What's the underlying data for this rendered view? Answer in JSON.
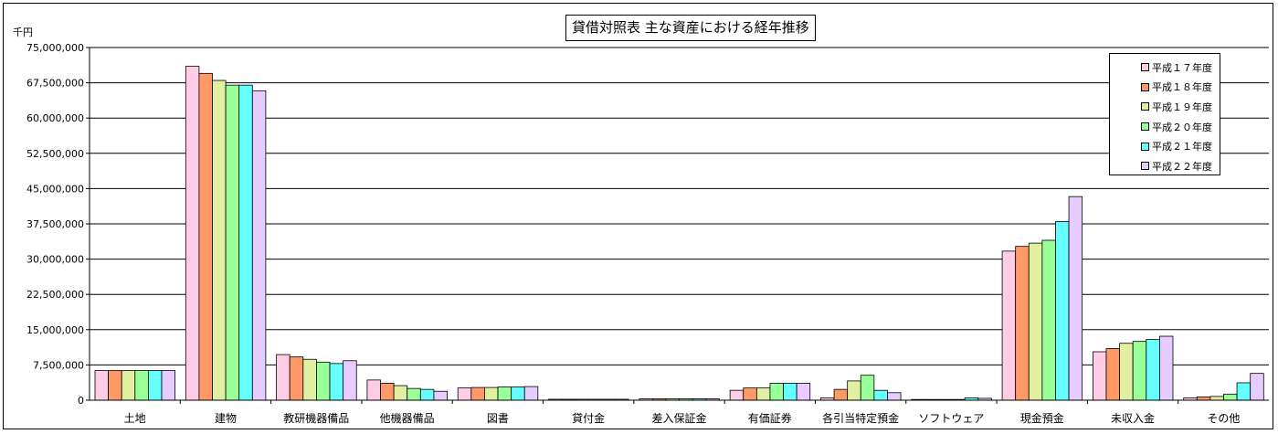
{
  "chart_data": {
    "type": "bar",
    "title": "貸借対照表 主な資産における経年推移",
    "ylabel": "千円",
    "ylim": [
      0,
      75000000
    ],
    "ytick_step": 7500000,
    "grid": true,
    "legend_position": "top-right",
    "categories": [
      "土地",
      "建物",
      "教研機器備品",
      "他機器備品",
      "図書",
      "貸付金",
      "差入保証金",
      "有価証券",
      "各引当特定預金",
      "ソフトウェア",
      "現金預金",
      "未収入金",
      "その他"
    ],
    "series": [
      {
        "name": "平成１７年度",
        "color": "#FFCCE6",
        "values": [
          6300000,
          71000000,
          9700000,
          4300000,
          2600000,
          200000,
          300000,
          2100000,
          500000,
          0,
          31700000,
          10300000,
          500000
        ]
      },
      {
        "name": "平成１８年度",
        "color": "#FF9966",
        "values": [
          6300000,
          69500000,
          9200000,
          3600000,
          2700000,
          200000,
          300000,
          2600000,
          2300000,
          0,
          32700000,
          11000000,
          700000
        ]
      },
      {
        "name": "平成１９年度",
        "color": "#E0F0A0",
        "values": [
          6300000,
          68000000,
          8700000,
          3100000,
          2700000,
          200000,
          300000,
          2600000,
          4100000,
          0,
          33400000,
          12100000,
          800000
        ]
      },
      {
        "name": "平成２０年度",
        "color": "#99FF99",
        "values": [
          6300000,
          67000000,
          8100000,
          2500000,
          2800000,
          200000,
          300000,
          3600000,
          5300000,
          0,
          34000000,
          12500000,
          1300000
        ]
      },
      {
        "name": "平成２１年度",
        "color": "#66FFFF",
        "values": [
          6300000,
          67000000,
          7800000,
          2300000,
          2800000,
          200000,
          300000,
          3600000,
          2100000,
          500000,
          38000000,
          12900000,
          3700000
        ]
      },
      {
        "name": "平成２２年度",
        "color": "#E6CCFF",
        "values": [
          6300000,
          65800000,
          8400000,
          1900000,
          2900000,
          200000,
          300000,
          3600000,
          1600000,
          400000,
          43300000,
          13600000,
          5700000
        ]
      }
    ]
  }
}
